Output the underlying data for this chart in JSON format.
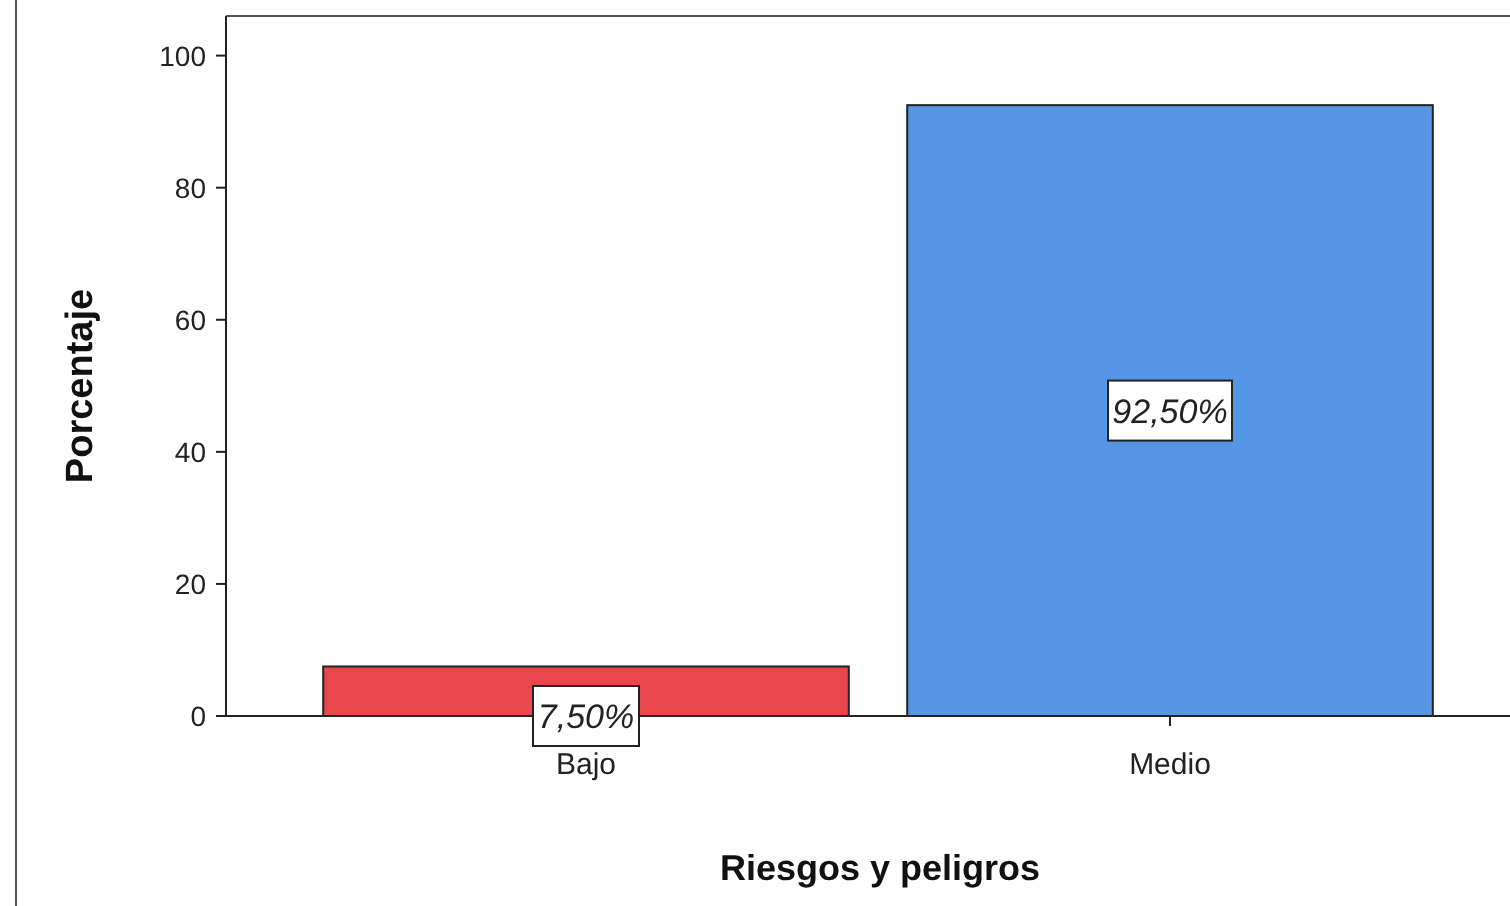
{
  "chart_data": {
    "type": "bar",
    "xlabel": "Riesgos y peligros",
    "ylabel": "Porcentaje",
    "categories": [
      "Bajo",
      "Medio"
    ],
    "values": [
      7.5,
      92.5
    ],
    "colors": [
      "#e8474b",
      "#5596e5"
    ],
    "value_labels": [
      "7,50%",
      "92,50%"
    ],
    "ylim": [
      0,
      106
    ],
    "yticks": [
      0,
      20,
      40,
      60,
      80,
      100
    ]
  }
}
